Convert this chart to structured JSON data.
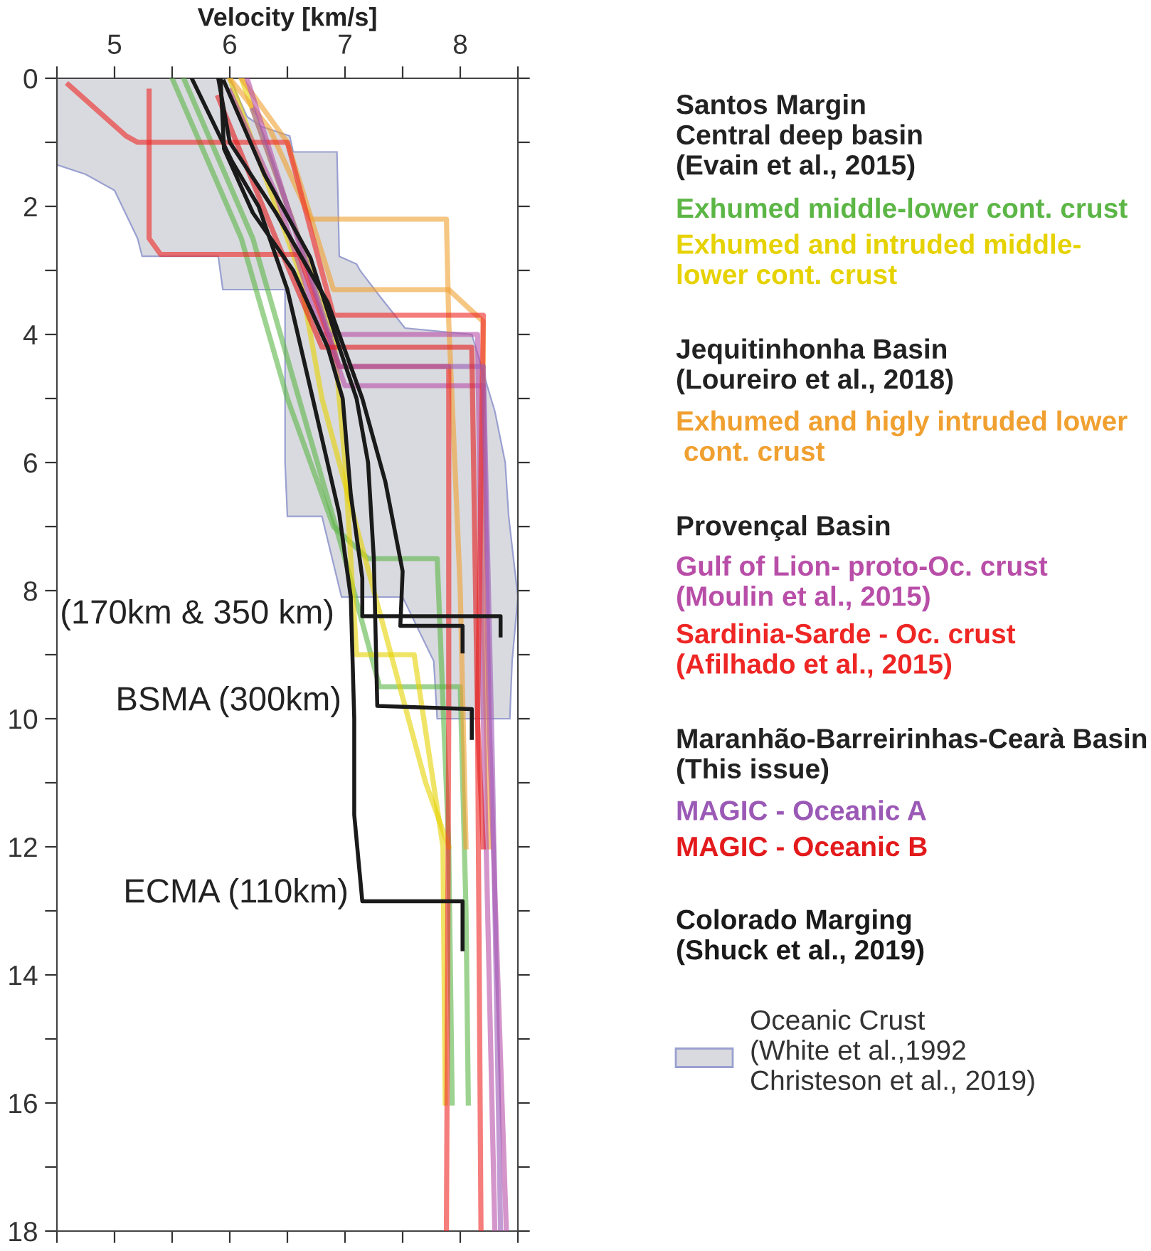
{
  "chart_data": {
    "type": "line",
    "xlabel": "Velocity [km/s]",
    "xlim": [
      4.5,
      8.5
    ],
    "ylim": [
      18,
      0
    ],
    "xticks": [
      {
        "value": 4.5,
        "label": null
      },
      5,
      {
        "value": 5.5,
        "label": null
      },
      6,
      {
        "value": 6.5,
        "label": null
      },
      7,
      {
        "value": 7.5,
        "label": null
      },
      8,
      {
        "value": 8.5,
        "label": null
      }
    ],
    "yticks": [
      0,
      {
        "value": 1,
        "label": null
      },
      2,
      {
        "value": 3,
        "label": null
      },
      4,
      {
        "value": 5,
        "label": null
      },
      6,
      {
        "value": 7,
        "label": null
      },
      8,
      {
        "value": 9,
        "label": null
      },
      10,
      {
        "value": 11,
        "label": null
      },
      12,
      {
        "value": 13,
        "label": null
      },
      14,
      {
        "value": 15,
        "label": null
      },
      16,
      {
        "value": 17,
        "label": null
      },
      18
    ],
    "grid": false,
    "legend": "right",
    "line_style": "solid",
    "marker": "none",
    "annotations": [
      "Santos Margin\nCentral deep basin\n(Evain et al., 2015)",
      "Jequitinhonha Basin\n(Loureiro et al., 2018)",
      "Provençal Basin",
      "Maranhão-Barreirinhas-Cearà Basin\n(This issue)",
      "(170km & 350 km)",
      "BSMA (300km)",
      "ECMA (110km)"
    ],
    "series": [
      {
        "type": "area",
        "name": "Oceanic Crust\n(White et al.,1992\nChristeson et al., 2019)",
        "color": "#d9dadf",
        "x": [
          4.5,
          4.5,
          4.75,
          5.0,
          5.2,
          5.24,
          5.9,
          5.94,
          6.48,
          6.48,
          6.5,
          6.8,
          6.97,
          7.5,
          7.77,
          7.8,
          8.43,
          8.45,
          8.5,
          8.5,
          8.42,
          8.39,
          8.3,
          8.1,
          7.52,
          7.3,
          7.13,
          7.1,
          6.95,
          6.93,
          6.93,
          6.55,
          6.52,
          6.27,
          6.15,
          6.0
        ],
        "values": [
          0,
          1.35,
          1.5,
          1.75,
          2.5,
          2.78,
          2.78,
          3.3,
          3.3,
          6.0,
          6.84,
          6.84,
          8.1,
          8.1,
          9.1,
          10.0,
          10.0,
          9.1,
          8.1,
          8.1,
          6.84,
          6.0,
          5.2,
          4.0,
          3.9,
          3.4,
          3.0,
          2.9,
          2.78,
          1.15,
          1.15,
          1.15,
          0.9,
          0.75,
          0.6,
          0
        ]
      },
      {
        "name": "Exhumed middle-lower cont. crust",
        "color": "#5cb646",
        "x": [
          5.5,
          6.1,
          6.5,
          6.9,
          7.2,
          7.8,
          7.9,
          7.93
        ],
        "values": [
          0,
          2.5,
          5,
          7,
          7.5,
          7.5,
          12,
          16
        ]
      },
      {
        "color": "#5cb646",
        "x": [
          5.6,
          6.2,
          6.6,
          7.0,
          7.3,
          8.0,
          8.05,
          8.07
        ],
        "values": [
          0,
          2.5,
          5,
          7.5,
          9.5,
          9.5,
          13,
          16
        ]
      },
      {
        "name": "Exhumed and intruded middle-\nlower cont. crust",
        "color": "#e6d200",
        "x": [
          6.1,
          6.5,
          6.9,
          7.0,
          7.1,
          7.6,
          7.85,
          7.87
        ],
        "values": [
          0,
          2,
          4,
          6,
          9,
          9,
          12,
          16
        ]
      },
      {
        "color": "#e6d200",
        "x": [
          6.0,
          6.6,
          6.8,
          7.25,
          7.7,
          7.9
        ],
        "values": [
          0,
          3,
          5,
          8,
          11,
          12
        ]
      },
      {
        "name": "Exhumed and higly intruded lower\n cont. crust",
        "color": "#f0a030",
        "x": [
          6.0,
          6.35,
          6.7,
          7.88,
          7.9,
          8.0,
          8.05
        ],
        "values": [
          0,
          0.8,
          2.2,
          2.2,
          3.8,
          8,
          12
        ]
      },
      {
        "color": "#f0a030",
        "x": [
          6.1,
          6.5,
          6.9,
          7.9,
          8.2,
          8.2,
          8.25
        ],
        "values": [
          0,
          1,
          3.3,
          3.3,
          3.8,
          8,
          12
        ]
      },
      {
        "name": "Gulf of Lion- proto-Oc. crust\n(Moulin et al., 2015)",
        "color": "#b84ea8",
        "x": [
          6.15,
          6.5,
          6.9,
          7.0,
          8.2,
          8.25,
          8.4
        ],
        "values": [
          0,
          2,
          4.3,
          4.8,
          4.8,
          10,
          18
        ]
      },
      {
        "color": "#b84ea8",
        "x": [
          6.0,
          6.4,
          6.8,
          8.15,
          8.2,
          8.3
        ],
        "values": [
          0.2,
          1.8,
          4.0,
          4.0,
          10,
          18
        ]
      },
      {
        "name": "Sardinia-Sarde - Oc. crust\n(Afilhado et al., 2015)",
        "color": "#ee2624",
        "x": [
          4.6,
          5.1,
          5.2,
          6.5,
          6.9,
          8.2,
          8.15,
          8.18
        ],
        "values": [
          0.1,
          0.9,
          1.0,
          1.0,
          3.7,
          3.7,
          10,
          18
        ]
      },
      {
        "color": "#ee2624",
        "x": [
          5.3,
          5.3,
          5.4,
          6.6,
          6.95,
          7.9,
          7.9,
          7.88
        ],
        "values": [
          0.2,
          2.5,
          2.75,
          2.75,
          4.5,
          4.5,
          10,
          18
        ]
      },
      {
        "name": "MAGIC - Oceanic A",
        "color": "#9b59b6",
        "x": [
          6.2,
          6.6,
          6.95,
          8.2,
          8.28,
          8.35
        ],
        "values": [
          0.5,
          2.5,
          4.5,
          4.5,
          10.8,
          18
        ]
      },
      {
        "name": "MAGIC - Oceanic B",
        "color": "#e31a1c",
        "x": [
          5.9,
          6.4,
          6.8,
          8.1,
          8.15,
          8.2
        ],
        "values": [
          0.3,
          2.5,
          4.2,
          4.2,
          10,
          12
        ]
      },
      {
        "name": "Colorado Marging\n(Shuck et al., 2019)",
        "color": "#1a1a1a",
        "x": [
          5.67,
          6.02,
          6.25,
          6.5,
          6.72,
          6.95,
          7.05,
          7.08,
          7.08,
          7.15,
          8.02,
          8.02
        ],
        "values": [
          0,
          1.3,
          2,
          3.3,
          5,
          6.8,
          8.1,
          10,
          11.5,
          12.85,
          12.85,
          13.6
        ]
      },
      {
        "color": "#1a1a1a",
        "x": [
          5.92,
          5.95,
          6.2,
          6.55,
          6.85,
          6.98,
          7.05,
          7.15,
          7.15,
          8.35,
          8.35
        ],
        "values": [
          0,
          1.1,
          2.1,
          3.0,
          4.2,
          5.0,
          6.5,
          7.8,
          8.4,
          8.4,
          8.7
        ]
      },
      {
        "color": "#1a1a1a",
        "x": [
          5.9,
          6.0,
          6.4,
          6.85,
          7.15,
          7.35,
          7.5,
          7.48,
          8.02,
          8.02
        ],
        "values": [
          0,
          1.0,
          2.1,
          3.5,
          5.0,
          6.3,
          7.7,
          8.55,
          8.55,
          8.95
        ]
      },
      {
        "color": "#1a1a1a",
        "x": [
          5.95,
          6.3,
          6.7,
          6.95,
          7.1,
          7.2,
          7.25,
          7.28,
          8.1,
          8.1
        ],
        "values": [
          0.05,
          1.5,
          2.8,
          4.2,
          5.0,
          6.0,
          7.5,
          9.8,
          9.85,
          10.3
        ]
      }
    ]
  }
}
